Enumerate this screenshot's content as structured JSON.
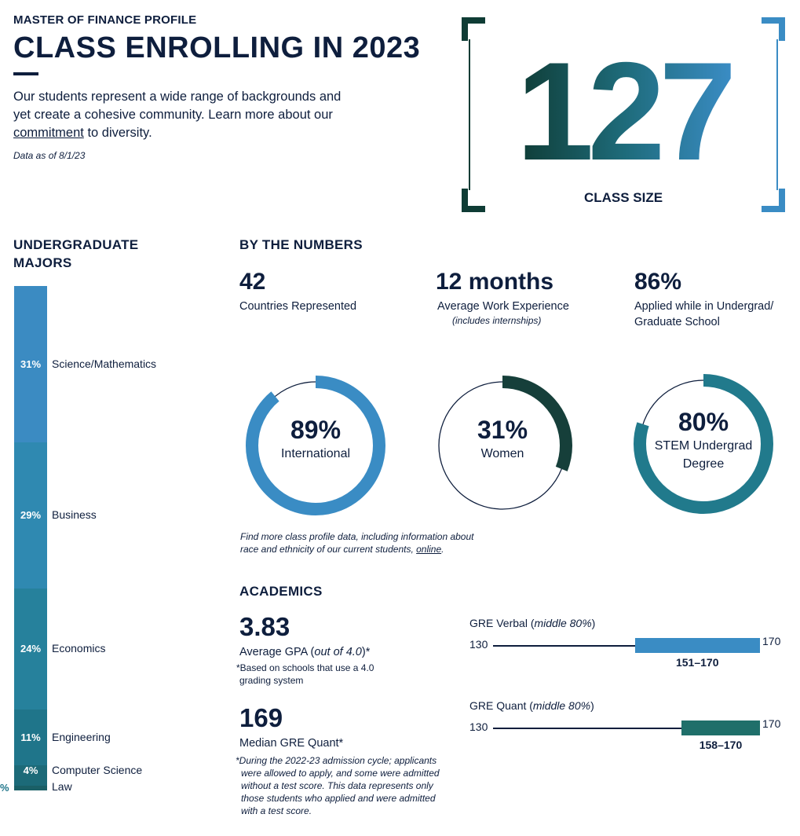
{
  "header": {
    "eyebrow": "MASTER OF FINANCE PROFILE",
    "title": "CLASS ENROLLING IN 2023",
    "intro_before": "Our students represent a wide range of backgrounds and yet create a cohesive community. Learn more about our ",
    "intro_link": "commitment",
    "intro_after": " to diversity.",
    "as_of": "Data as of 8/1/23"
  },
  "class_size": {
    "value": "127",
    "label": "CLASS SIZE"
  },
  "majors": {
    "heading_line1": "UNDERGRADUATE",
    "heading_line2": "MAJORS",
    "items": [
      {
        "pct": "31%",
        "label": "Science/Mathematics",
        "value": 31,
        "color": "#3b8bc2"
      },
      {
        "pct": "29%",
        "label": "Business",
        "value": 29,
        "color": "#2f89b1"
      },
      {
        "pct": "24%",
        "label": "Economics",
        "value": 24,
        "color": "#26819c"
      },
      {
        "pct": "11%",
        "label": "Engineering",
        "value": 11,
        "color": "#1f758a"
      },
      {
        "pct": "4%",
        "label": "Computer Science",
        "value": 4,
        "color": "#1c6a78"
      },
      {
        "pct": "%",
        "label": "Law",
        "value": 1,
        "color": "#1a5f66"
      }
    ]
  },
  "by_numbers": {
    "heading": "BY THE NUMBERS",
    "stats": [
      {
        "value": "42",
        "label": "Countries Represented"
      },
      {
        "value": "12 months",
        "label": "Average Work Experience",
        "note": "(includes internships)"
      },
      {
        "value": "86%",
        "label_line1": "Applied while in Undergrad/",
        "label_line2": "Graduate School"
      }
    ],
    "donuts": [
      {
        "value": "89%",
        "label_line1": "International",
        "fraction": 0.89,
        "color": "#3a8cc4"
      },
      {
        "value": "31%",
        "label_line1": "Women",
        "fraction": 0.31,
        "color": "#163f3a"
      },
      {
        "value": "80%",
        "label_line1": "STEM Undergrad",
        "label_line2": "Degree",
        "fraction": 0.8,
        "color": "#217a8c"
      }
    ],
    "footnote_line1": "Find more class profile data, including information about",
    "footnote_line2_before": "race and ethnicity of our current students, ",
    "footnote_link": "online",
    "footnote_after": "."
  },
  "academics": {
    "heading": "ACADEMICS",
    "gpa": {
      "value": "3.83",
      "label_before": "Average GPA (",
      "label_italic": "out of 4.0",
      "label_after": ")*",
      "note_line1": "*Based on schools that use a 4.0",
      "note_line2": "grading system"
    },
    "gre_quant_median": {
      "value": "169",
      "label": "Median GRE Quant*",
      "note_lines": [
        "*During the 2022-23 admission cycle; applicants",
        "were allowed to apply, and some were admitted",
        "without a test score. This data represents only",
        "those students who applied and were admitted",
        "with a test score."
      ]
    },
    "gre": [
      {
        "title_before": "GRE Verbal (",
        "title_italic": "middle 80%",
        "title_after": ")",
        "min": "130",
        "max": "170",
        "range": "151–170",
        "low": 151,
        "high": 170,
        "scale_min": 130,
        "scale_max": 170,
        "color": "#3a8cc4"
      },
      {
        "title_before": "GRE Quant (",
        "title_italic": "middle 80%",
        "title_after": ")",
        "min": "130",
        "max": "170",
        "range": "158–170",
        "low": 158,
        "high": 170,
        "scale_min": 130,
        "scale_max": 170,
        "color": "#1f6f6a"
      }
    ]
  }
}
